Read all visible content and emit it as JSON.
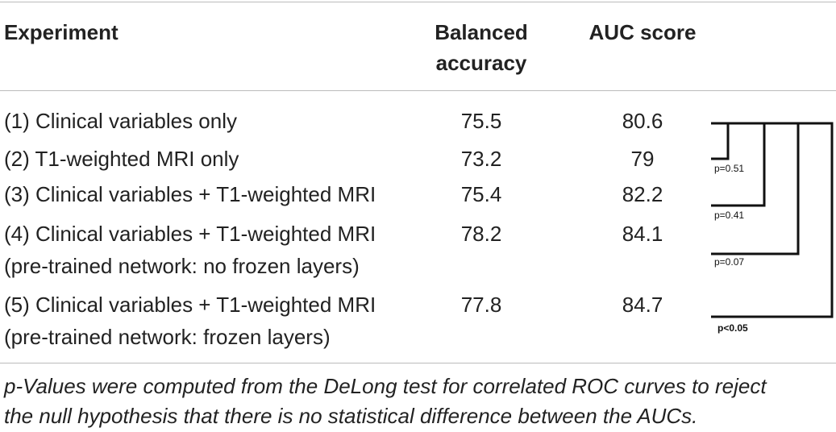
{
  "table": {
    "header": [
      [
        "Experiment"
      ],
      [
        "Balanced",
        "accuracy"
      ],
      [
        "AUC score"
      ]
    ],
    "rows": [
      [
        [
          "(1) Clinical variables only"
        ],
        "75.5",
        "80.6"
      ],
      [
        [
          "(2) T1-weighted MRI only"
        ],
        "73.2",
        "79"
      ],
      [
        [
          "(3) Clinical variables + T1-weighted MRI"
        ],
        "75.4",
        "82.2"
      ],
      [
        [
          "(4) Clinical variables + T1-weighted MRI",
          "(pre-trained network: no frozen layers)"
        ],
        "78.2",
        "84.1"
      ],
      [
        [
          "(5) Clinical variables + T1-weighted MRI",
          "(pre-trained network: frozen layers)"
        ],
        "77.8",
        "84.7"
      ]
    ],
    "comparisons": [
      "p=0.51",
      "p=0.41",
      "p=0.07",
      "p<0.05"
    ],
    "footnote": [
      "p-Values were computed from the DeLong test for correlated ROC curves to reject",
      "the null hypothesis that there is no statistical difference between the AUCs."
    ]
  }
}
